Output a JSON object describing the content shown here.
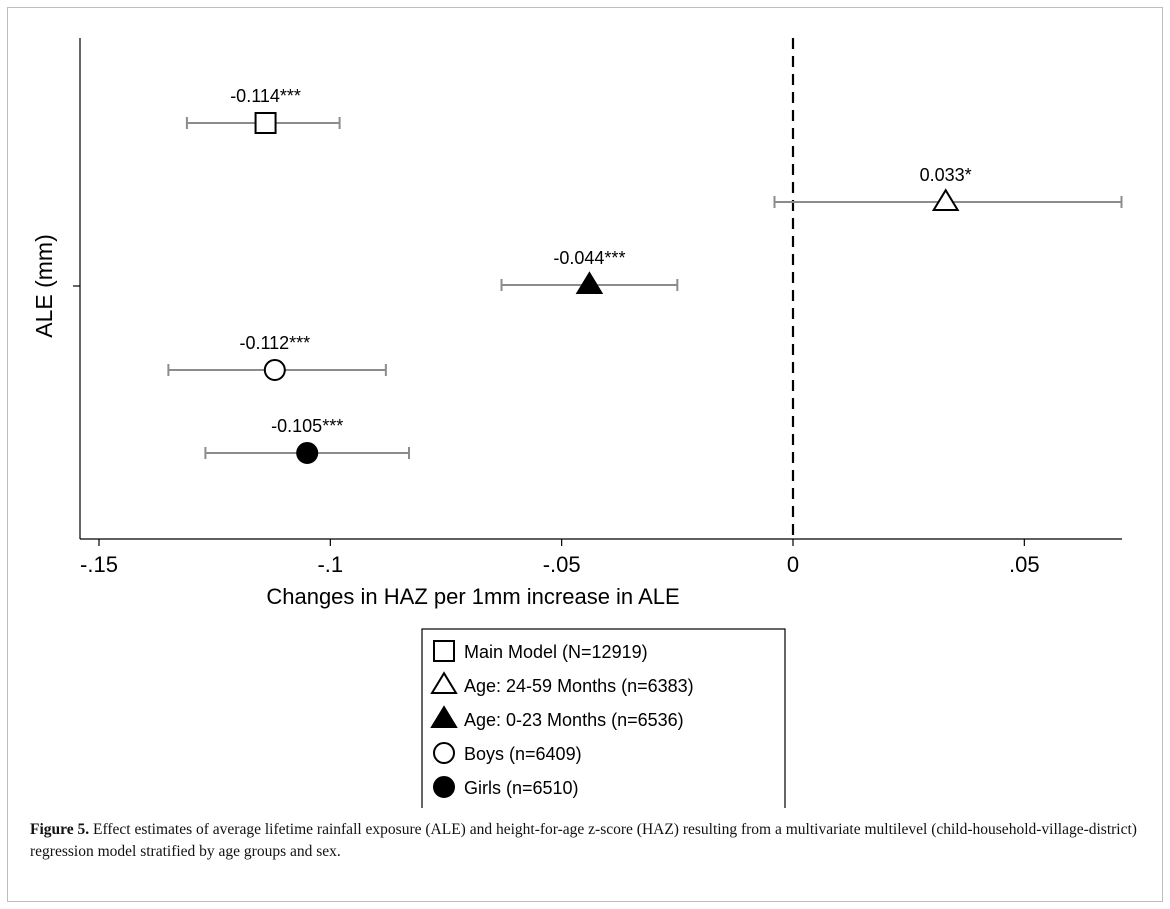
{
  "chart_data": {
    "type": "scatter",
    "subtype": "coefficient-plot",
    "xlabel": "Changes in HAZ per 1mm increase in ALE",
    "ylabel": "ALE (mm)",
    "xlim": [
      -0.15,
      0.07
    ],
    "xticks": [
      -0.15,
      -0.1,
      -0.05,
      0,
      0.05
    ],
    "xtick_labels": [
      "-.15",
      "-.1",
      "-.05",
      "0",
      ".05"
    ],
    "reference_line": {
      "x": 0,
      "style": "dashed"
    },
    "grid": false,
    "legend_position": "bottom",
    "series": [
      {
        "name": "Main Model (N=12919)",
        "marker": "hollow-square",
        "estimate": -0.114,
        "ci": [
          -0.131,
          -0.098
        ],
        "label": "-0.114***"
      },
      {
        "name": "Age: 24-59 Months (n=6383)",
        "marker": "hollow-triangle",
        "estimate": 0.033,
        "ci": [
          -0.004,
          0.071
        ],
        "label": "0.033*"
      },
      {
        "name": "Age: 0-23 Months (n=6536)",
        "marker": "filled-triangle",
        "estimate": -0.044,
        "ci": [
          -0.063,
          -0.025
        ],
        "label": "-0.044***"
      },
      {
        "name": "Boys (n=6409)",
        "marker": "hollow-circle",
        "estimate": -0.112,
        "ci": [
          -0.135,
          -0.088
        ],
        "label": "-0.112***"
      },
      {
        "name": "Girls (n=6510)",
        "marker": "filled-circle",
        "estimate": -0.105,
        "ci": [
          -0.127,
          -0.083
        ],
        "label": "-0.105***"
      }
    ]
  },
  "caption": {
    "label": "Figure 5.",
    "text": " Effect estimates of average lifetime rainfall exposure (ALE) and height-for-age z-score (HAZ) resulting from a multivariate multilevel (child-household-village-district) regression model stratified by age groups and sex."
  },
  "colors": {
    "ci_line": "#8c8c8c",
    "marker": "#000000",
    "axis": "#000000"
  }
}
